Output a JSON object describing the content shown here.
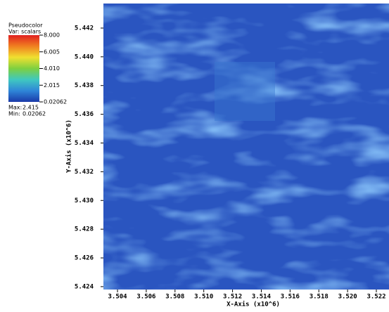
{
  "chart_data": {
    "type": "heatmap",
    "title": "Pseudocolor",
    "subtitle": "Var: scalars",
    "xlabel": "X-Axis (x10^6)",
    "ylabel": "Y-Axis (x10^6)",
    "xlim": [
      3.50302,
      3.52288
    ],
    "ylim": [
      5.4238,
      5.44371
    ],
    "xticks": [
      3.504,
      3.506,
      3.508,
      {
        "value": 3.51,
        "label": "3.510"
      },
      3.512,
      3.514,
      3.516,
      3.518,
      {
        "value": 3.52,
        "label": "3.520"
      },
      3.522
    ],
    "yticks": [
      5.424,
      5.426,
      5.428,
      {
        "value": 5.43,
        "label": "5.430"
      },
      5.432,
      5.434,
      5.436,
      5.438,
      {
        "value": 5.44,
        "label": "5.440"
      },
      5.442
    ],
    "clim": [
      0.02062,
      8
    ],
    "cticks": [
      {
        "value": 0.02062,
        "label": "0.02062"
      },
      2.015,
      {
        "value": 4.01,
        "label": "4.010"
      },
      6.005,
      {
        "value": 8,
        "label": "8.000"
      }
    ],
    "colors": [
      "#1a3aa8",
      "#2f86d8",
      "#3fc8c0",
      "#7ed040",
      "#f0e030",
      "#f08020",
      "#e02020"
    ],
    "max_label": "Max:",
    "max": 2.415,
    "min_label": "Min:",
    "min": 0.02062
  }
}
